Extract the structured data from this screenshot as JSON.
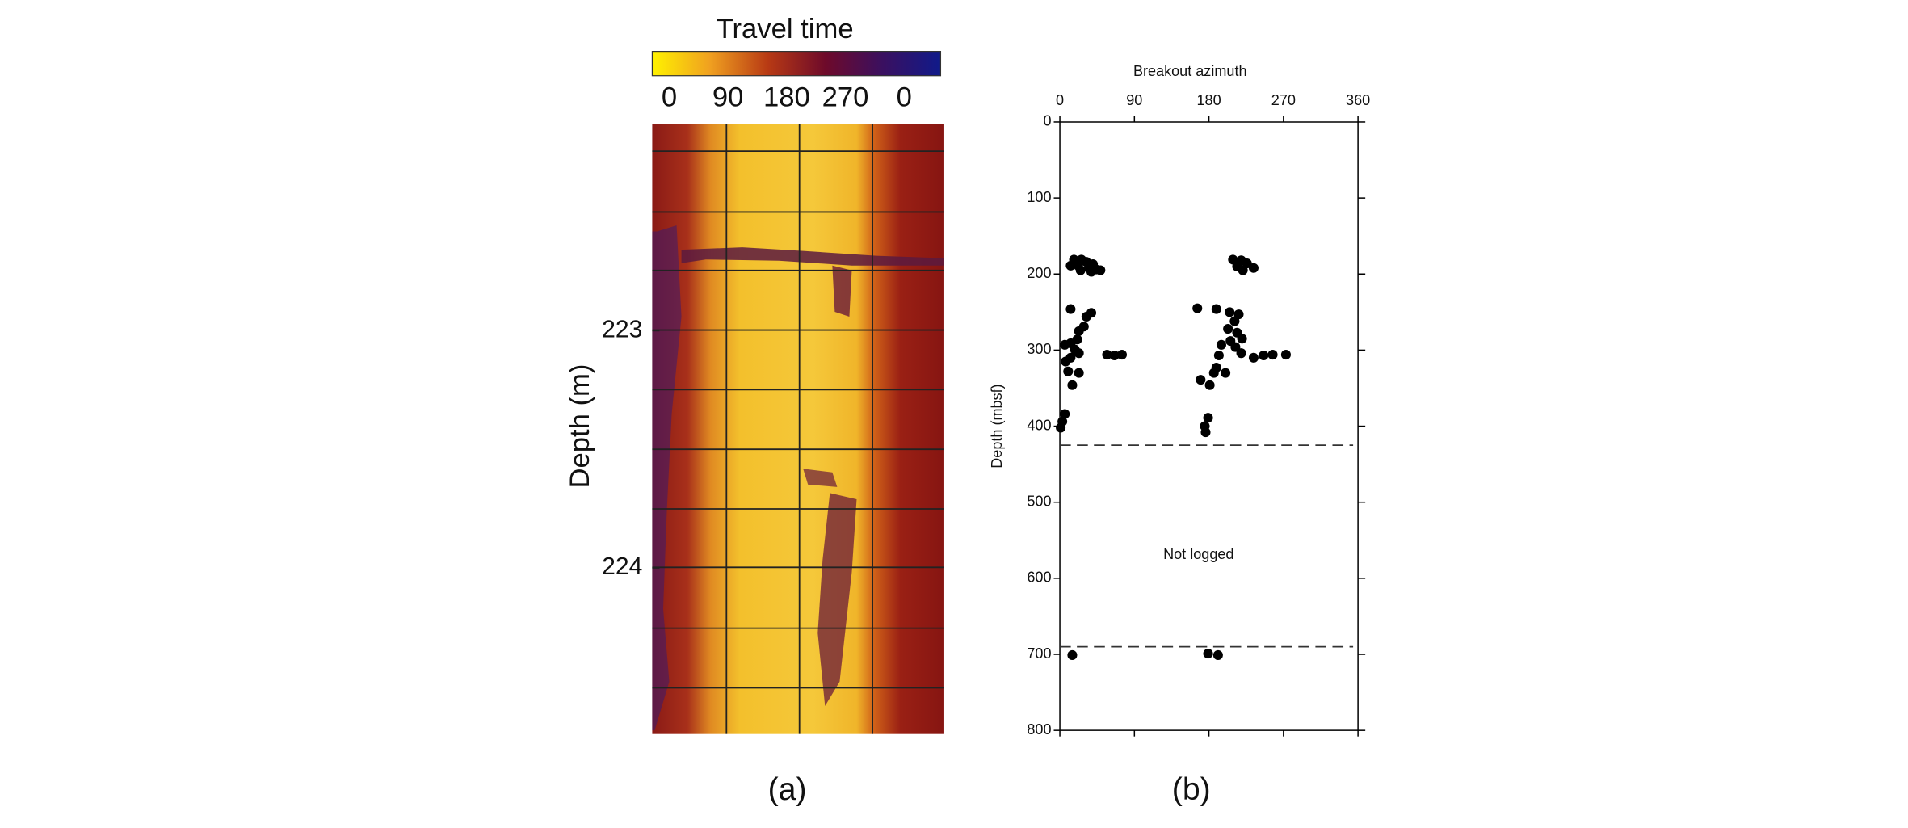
{
  "chart_data": [
    {
      "type": "heatmap",
      "colorbar": {
        "title": "Travel time",
        "lim": [
          0,
          360
        ],
        "ticks": [
          0,
          90,
          180,
          270,
          {
            "value": 360,
            "label": "0"
          }
        ],
        "colors": [
          "#fff200",
          "#f0a020",
          "#b83a14",
          "#6e0a2a",
          "#3a1060",
          "#101a8a"
        ]
      },
      "y_label": "Depth (m)",
      "ylim": [
        222.13,
        224.7
      ],
      "yticks": [
        223,
        224
      ],
      "y_inverted": true,
      "caption": "(a)"
    },
    {
      "type": "scatter",
      "title": "Breakout azimuth",
      "y_label": "Depth (mbsf)",
      "xlim": [
        0,
        360
      ],
      "xticks": [
        0,
        90,
        180,
        270,
        360
      ],
      "ylim": [
        0,
        800
      ],
      "yticks": [
        0,
        100,
        200,
        300,
        400,
        500,
        600,
        700,
        800
      ],
      "y_inverted": true,
      "color": "#000000",
      "x": [
        17,
        26,
        32,
        40,
        44,
        35,
        22,
        13,
        25,
        38,
        49,
        13,
        38,
        32,
        29,
        23,
        21,
        13,
        6,
        18,
        23,
        13,
        7,
        23,
        10,
        15,
        57,
        66,
        75,
        6,
        3,
        1,
        166,
        209,
        219,
        226,
        234,
        214,
        221,
        189,
        205,
        216,
        211,
        203,
        214,
        220,
        206,
        195,
        212,
        219,
        192,
        234,
        246,
        257,
        273,
        189,
        170,
        181,
        186,
        200,
        179,
        175,
        176,
        15,
        179,
        191
      ],
      "y": [
        181,
        181,
        184,
        187,
        194,
        192,
        189,
        189,
        195,
        197,
        195,
        246,
        251,
        256,
        269,
        275,
        286,
        291,
        293,
        299,
        304,
        310,
        315,
        330,
        328,
        346,
        306,
        307,
        306,
        384,
        394,
        402,
        245,
        181,
        182,
        186,
        192,
        190,
        195,
        246,
        250,
        253,
        262,
        272,
        277,
        285,
        288,
        293,
        296,
        304,
        307,
        310,
        307,
        306,
        306,
        323,
        339,
        346,
        330,
        330,
        389,
        400,
        408,
        701,
        699,
        701
      ],
      "hlines": [
        425,
        690
      ],
      "annotation": "Not logged",
      "caption": "(b)"
    }
  ]
}
